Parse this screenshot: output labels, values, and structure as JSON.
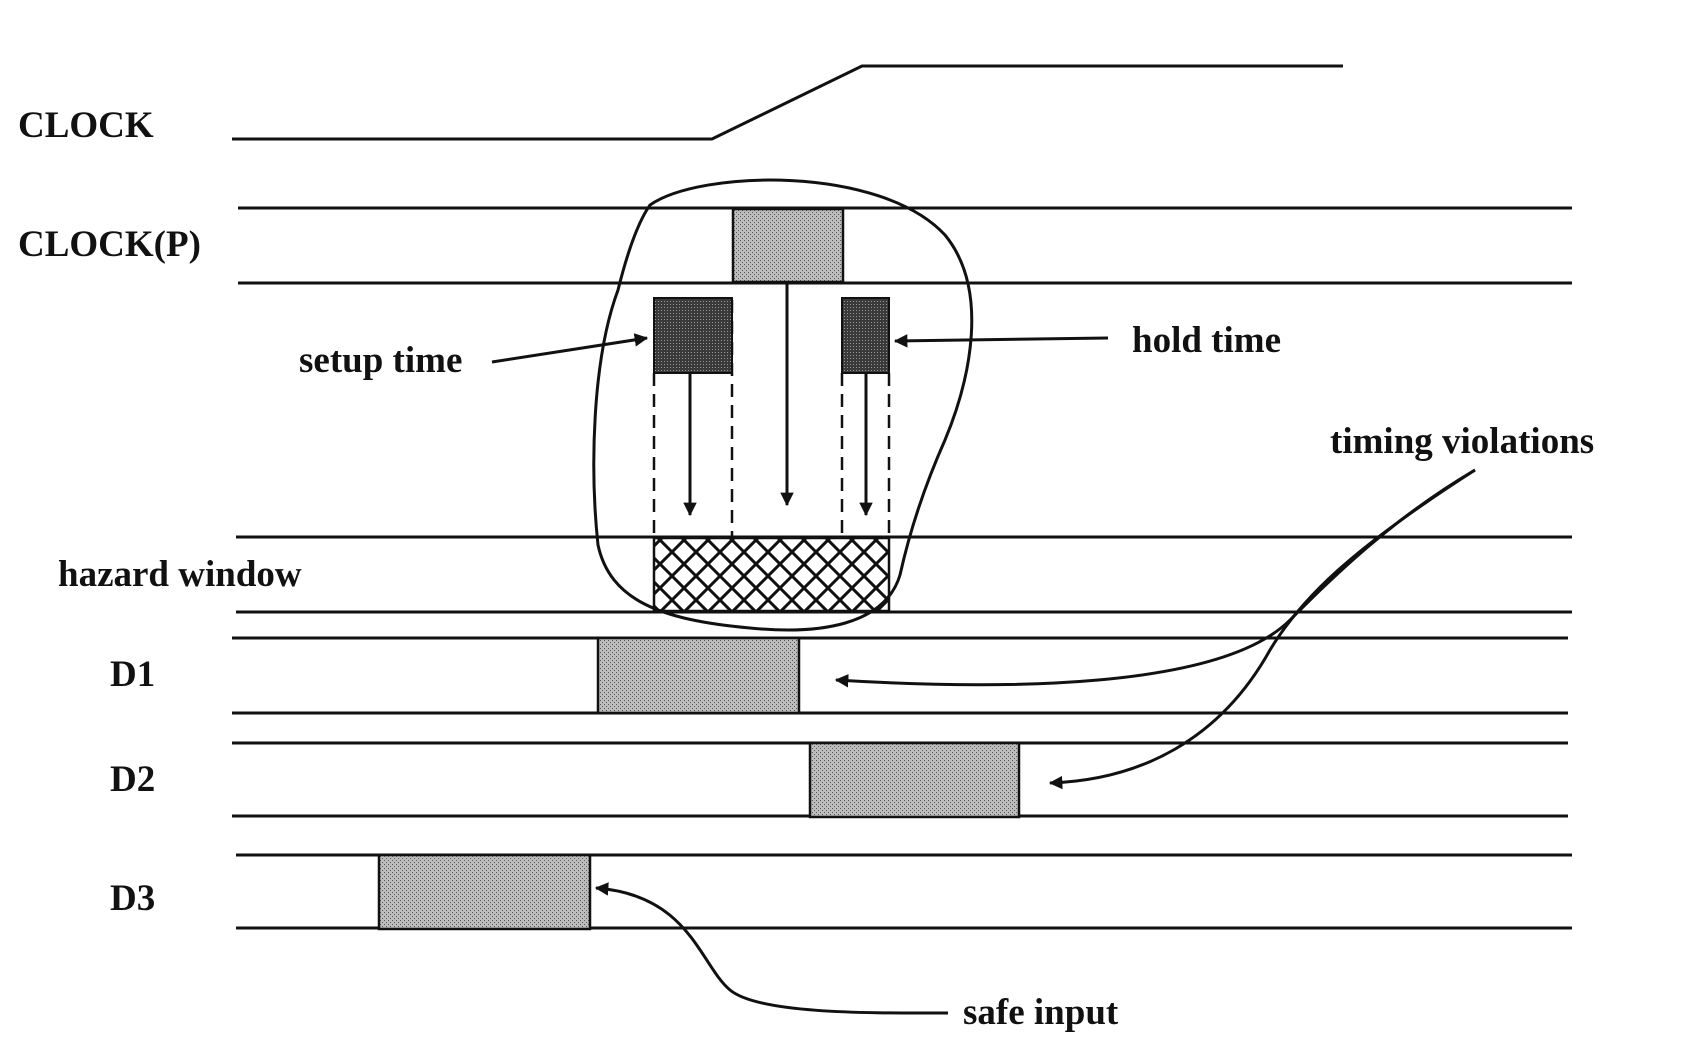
{
  "labels": {
    "clock": "CLOCK",
    "clock_p": "CLOCK(P)",
    "hazard_window": "hazard window",
    "d1": "D1",
    "d2": "D2",
    "d3": "D3"
  },
  "annotations": {
    "setup_time": "setup time",
    "hold_time": "hold time",
    "timing_violations": "timing violations",
    "safe_input": "safe input"
  }
}
